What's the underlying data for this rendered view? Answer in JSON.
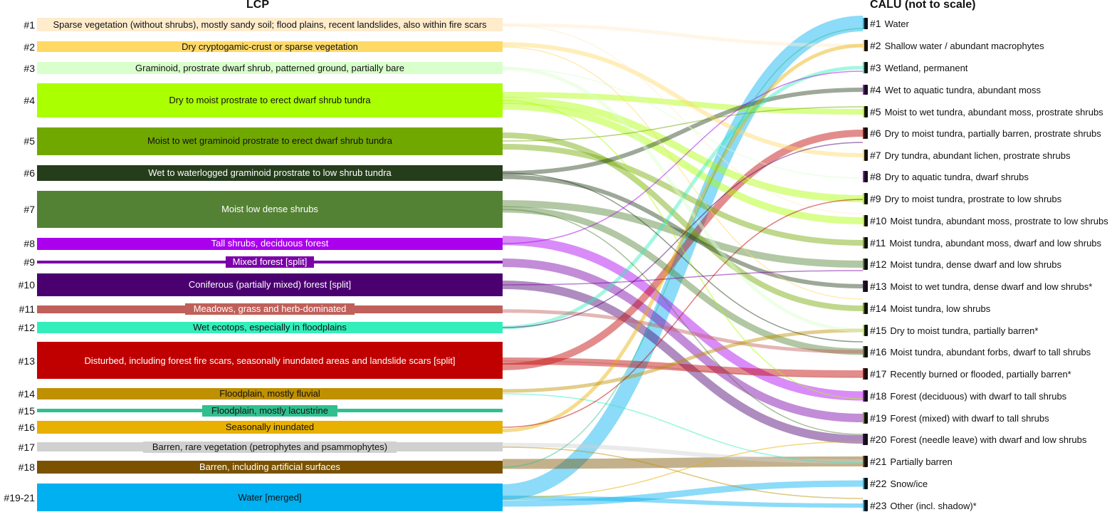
{
  "headers": {
    "left": "LCP",
    "right": "CALU (not to scale)"
  },
  "lcp": [
    {
      "num": "#1",
      "label": "Sparse vegetation (without shrubs), mostly sandy soil; flood plains, recent landslides, also within fire scars",
      "color": "#ffeccc",
      "text_color": "#111111"
    },
    {
      "num": "#2",
      "label": "Dry cryptogamic-crust or sparse vegetation",
      "color": "#ffd966",
      "text_color": "#111111"
    },
    {
      "num": "#3",
      "label": "Graminoid, prostrate dwarf shrub, patterned ground, partially bare",
      "color": "#d9ffcc",
      "text_color": "#111111"
    },
    {
      "num": "#4",
      "label": "Dry to moist prostrate to erect dwarf shrub tundra",
      "color": "#aaff00",
      "text_color": "#111111"
    },
    {
      "num": "#5",
      "label": "Moist to wet graminoid prostrate to erect dwarf shrub tundra",
      "color": "#70a800",
      "text_color": "#111111"
    },
    {
      "num": "#6",
      "label": "Wet to waterlogged graminoid prostrate to low shrub tundra",
      "color": "#263d1c",
      "text_color": "#ffffff"
    },
    {
      "num": "#7",
      "label": "Moist low dense shrubs",
      "color": "#548235",
      "text_color": "#ffffff"
    },
    {
      "num": "#8",
      "label": "Tall shrubs, deciduous forest",
      "color": "#aa00ee",
      "text_color": "#ffffff"
    },
    {
      "num": "#9",
      "label": "Mixed forest [split]",
      "color": "#7b00a8",
      "text_color": "#ffffff"
    },
    {
      "num": "#10",
      "label": "Coniferous (partially mixed) forest [split]",
      "color": "#4b0070",
      "text_color": "#ffffff"
    },
    {
      "num": "#11",
      "label": "Meadows, grass and herb-dominated",
      "color": "#c0605a",
      "text_color": "#ffffff"
    },
    {
      "num": "#12",
      "label": "Wet ecotops, especially in floodplains",
      "color": "#33eebb",
      "text_color": "#111111"
    },
    {
      "num": "#13",
      "label": "Disturbed, including forest fire scars, seasonally inundated areas and landslide scars [split]",
      "color": "#c00000",
      "text_color": "#ffffff"
    },
    {
      "num": "#14",
      "label": "Floodplain, mostly fluvial",
      "color": "#bf9000",
      "text_color": "#111111"
    },
    {
      "num": "#15",
      "label": "Floodplain, mostly lacustrine",
      "color": "#30c090",
      "text_color": "#111111"
    },
    {
      "num": "#16",
      "label": "Seasonally inundated",
      "color": "#e8b000",
      "text_color": "#111111"
    },
    {
      "num": "#17",
      "label": "Barren, rare vegetation (petrophytes and psammophytes)",
      "color": "#d0d0d0",
      "text_color": "#111111"
    },
    {
      "num": "#18",
      "label": "Barren, including artificial surfaces",
      "color": "#7a5200",
      "text_color": "#ffffff"
    },
    {
      "num": "#19-21",
      "label": "Water [merged]",
      "color": "#00b0f0",
      "text_color": "#111111"
    }
  ],
  "calu": [
    {
      "num": "#1",
      "label": "Water",
      "color": "#00b0f0"
    },
    {
      "num": "#2",
      "label": "Shallow water / abundant macrophytes",
      "color": "#ffd966"
    },
    {
      "num": "#3",
      "label": "Wetland, permanent",
      "color": "#33eebb"
    },
    {
      "num": "#4",
      "label": "Wet to aquatic tundra, abundant moss",
      "color": "#aa00ee"
    },
    {
      "num": "#5",
      "label": "Moist to wet tundra, abundant moss, prostrate shrubs",
      "color": "#aaff00"
    },
    {
      "num": "#6",
      "label": "Dry to moist tundra, partially barren, prostrate shrubs",
      "color": "#c00000"
    },
    {
      "num": "#7",
      "label": "Dry tundra, abundant lichen, prostrate shrubs",
      "color": "#ffd966"
    },
    {
      "num": "#8",
      "label": "Dry to aquatic tundra, dwarf shrubs",
      "color": "#aa00ee"
    },
    {
      "num": "#9",
      "label": "Dry to moist tundra, prostrate to low shrubs",
      "color": "#aaff00"
    },
    {
      "num": "#10",
      "label": "Moist tundra, abundant moss, prostrate to low shrubs",
      "color": "#aaff00"
    },
    {
      "num": "#11",
      "label": "Moist tundra, abundant moss, dwarf and low shrubs",
      "color": "#70a800"
    },
    {
      "num": "#12",
      "label": "Moist tundra, dense dwarf and low shrubs",
      "color": "#548235"
    },
    {
      "num": "#13",
      "label": "Moist to wet tundra, dense dwarf and low shrubs*",
      "color": "#4b0070"
    },
    {
      "num": "#14",
      "label": "Moist tundra, low shrubs",
      "color": "#70a800"
    },
    {
      "num": "#15",
      "label": "Dry to moist tundra, partially barren*",
      "color": "#aaff00"
    },
    {
      "num": "#16",
      "label": "Moist tundra, abundant forbs, dwarf to tall shrubs",
      "color": "#548235"
    },
    {
      "num": "#17",
      "label": "Recently burned or flooded, partially barren*",
      "color": "#c00000"
    },
    {
      "num": "#18",
      "label": "Forest (deciduous) with dwarf to tall shrubs",
      "color": "#aa00ee"
    },
    {
      "num": "#19",
      "label": "Forest (mixed) with dwarf to tall shrubs",
      "color": "#70a800"
    },
    {
      "num": "#20",
      "label": "Forest (needle leave) with dwarf and low shrubs",
      "color": "#4b0070"
    },
    {
      "num": "#21",
      "label": "Partially barren",
      "color": "#7a5200"
    },
    {
      "num": "#22",
      "label": "Snow/ice",
      "color": "#00b0f0"
    },
    {
      "num": "#23",
      "label": "Other (incl. shadow)*",
      "color": "#00b0f0"
    }
  ],
  "flows": [
    {
      "from": "#19-21",
      "to": "#1",
      "color": "#00b0f0"
    },
    {
      "from": "#19-21",
      "to": "#23",
      "color": "#00b0f0"
    },
    {
      "from": "#19-21",
      "to": "#22",
      "color": "#00b0f0"
    },
    {
      "from": "#18",
      "to": "#21",
      "color": "#7a5200"
    },
    {
      "from": "#10",
      "to": "#20",
      "color": "#4b0070"
    },
    {
      "from": "#9",
      "to": "#19",
      "color": "#7b00a8"
    },
    {
      "from": "#8",
      "to": "#18",
      "color": "#aa00ee"
    },
    {
      "from": "#13",
      "to": "#17",
      "color": "#c00000"
    },
    {
      "from": "#13",
      "to": "#6",
      "color": "#c00000"
    },
    {
      "from": "#7",
      "to": "#12",
      "color": "#548235"
    },
    {
      "from": "#7",
      "to": "#16",
      "color": "#548235"
    },
    {
      "from": "#5",
      "to": "#11",
      "color": "#70a800"
    },
    {
      "from": "#5",
      "to": "#14",
      "color": "#70a800"
    },
    {
      "from": "#4",
      "to": "#9",
      "color": "#aaff00"
    },
    {
      "from": "#4",
      "to": "#10",
      "color": "#aaff00"
    },
    {
      "from": "#4",
      "to": "#5",
      "color": "#aaff00"
    },
    {
      "from": "#6",
      "to": "#4",
      "color": "#263d1c"
    },
    {
      "from": "#6",
      "to": "#13",
      "color": "#263d1c"
    },
    {
      "from": "#2",
      "to": "#7",
      "color": "#ffd966"
    },
    {
      "from": "#1",
      "to": "#2",
      "color": "#ffeccc"
    },
    {
      "from": "#16",
      "to": "#2",
      "color": "#e8b000"
    },
    {
      "from": "#17",
      "to": "#21",
      "color": "#d0d0d0"
    },
    {
      "from": "#12",
      "to": "#3",
      "color": "#33eebb"
    },
    {
      "from": "#11",
      "to": "#16",
      "color": "#c0605a"
    },
    {
      "from": "#14",
      "to": "#15",
      "color": "#bf9000"
    },
    {
      "from": "#3",
      "to": "#15",
      "color": "#d9ffcc"
    }
  ]
}
